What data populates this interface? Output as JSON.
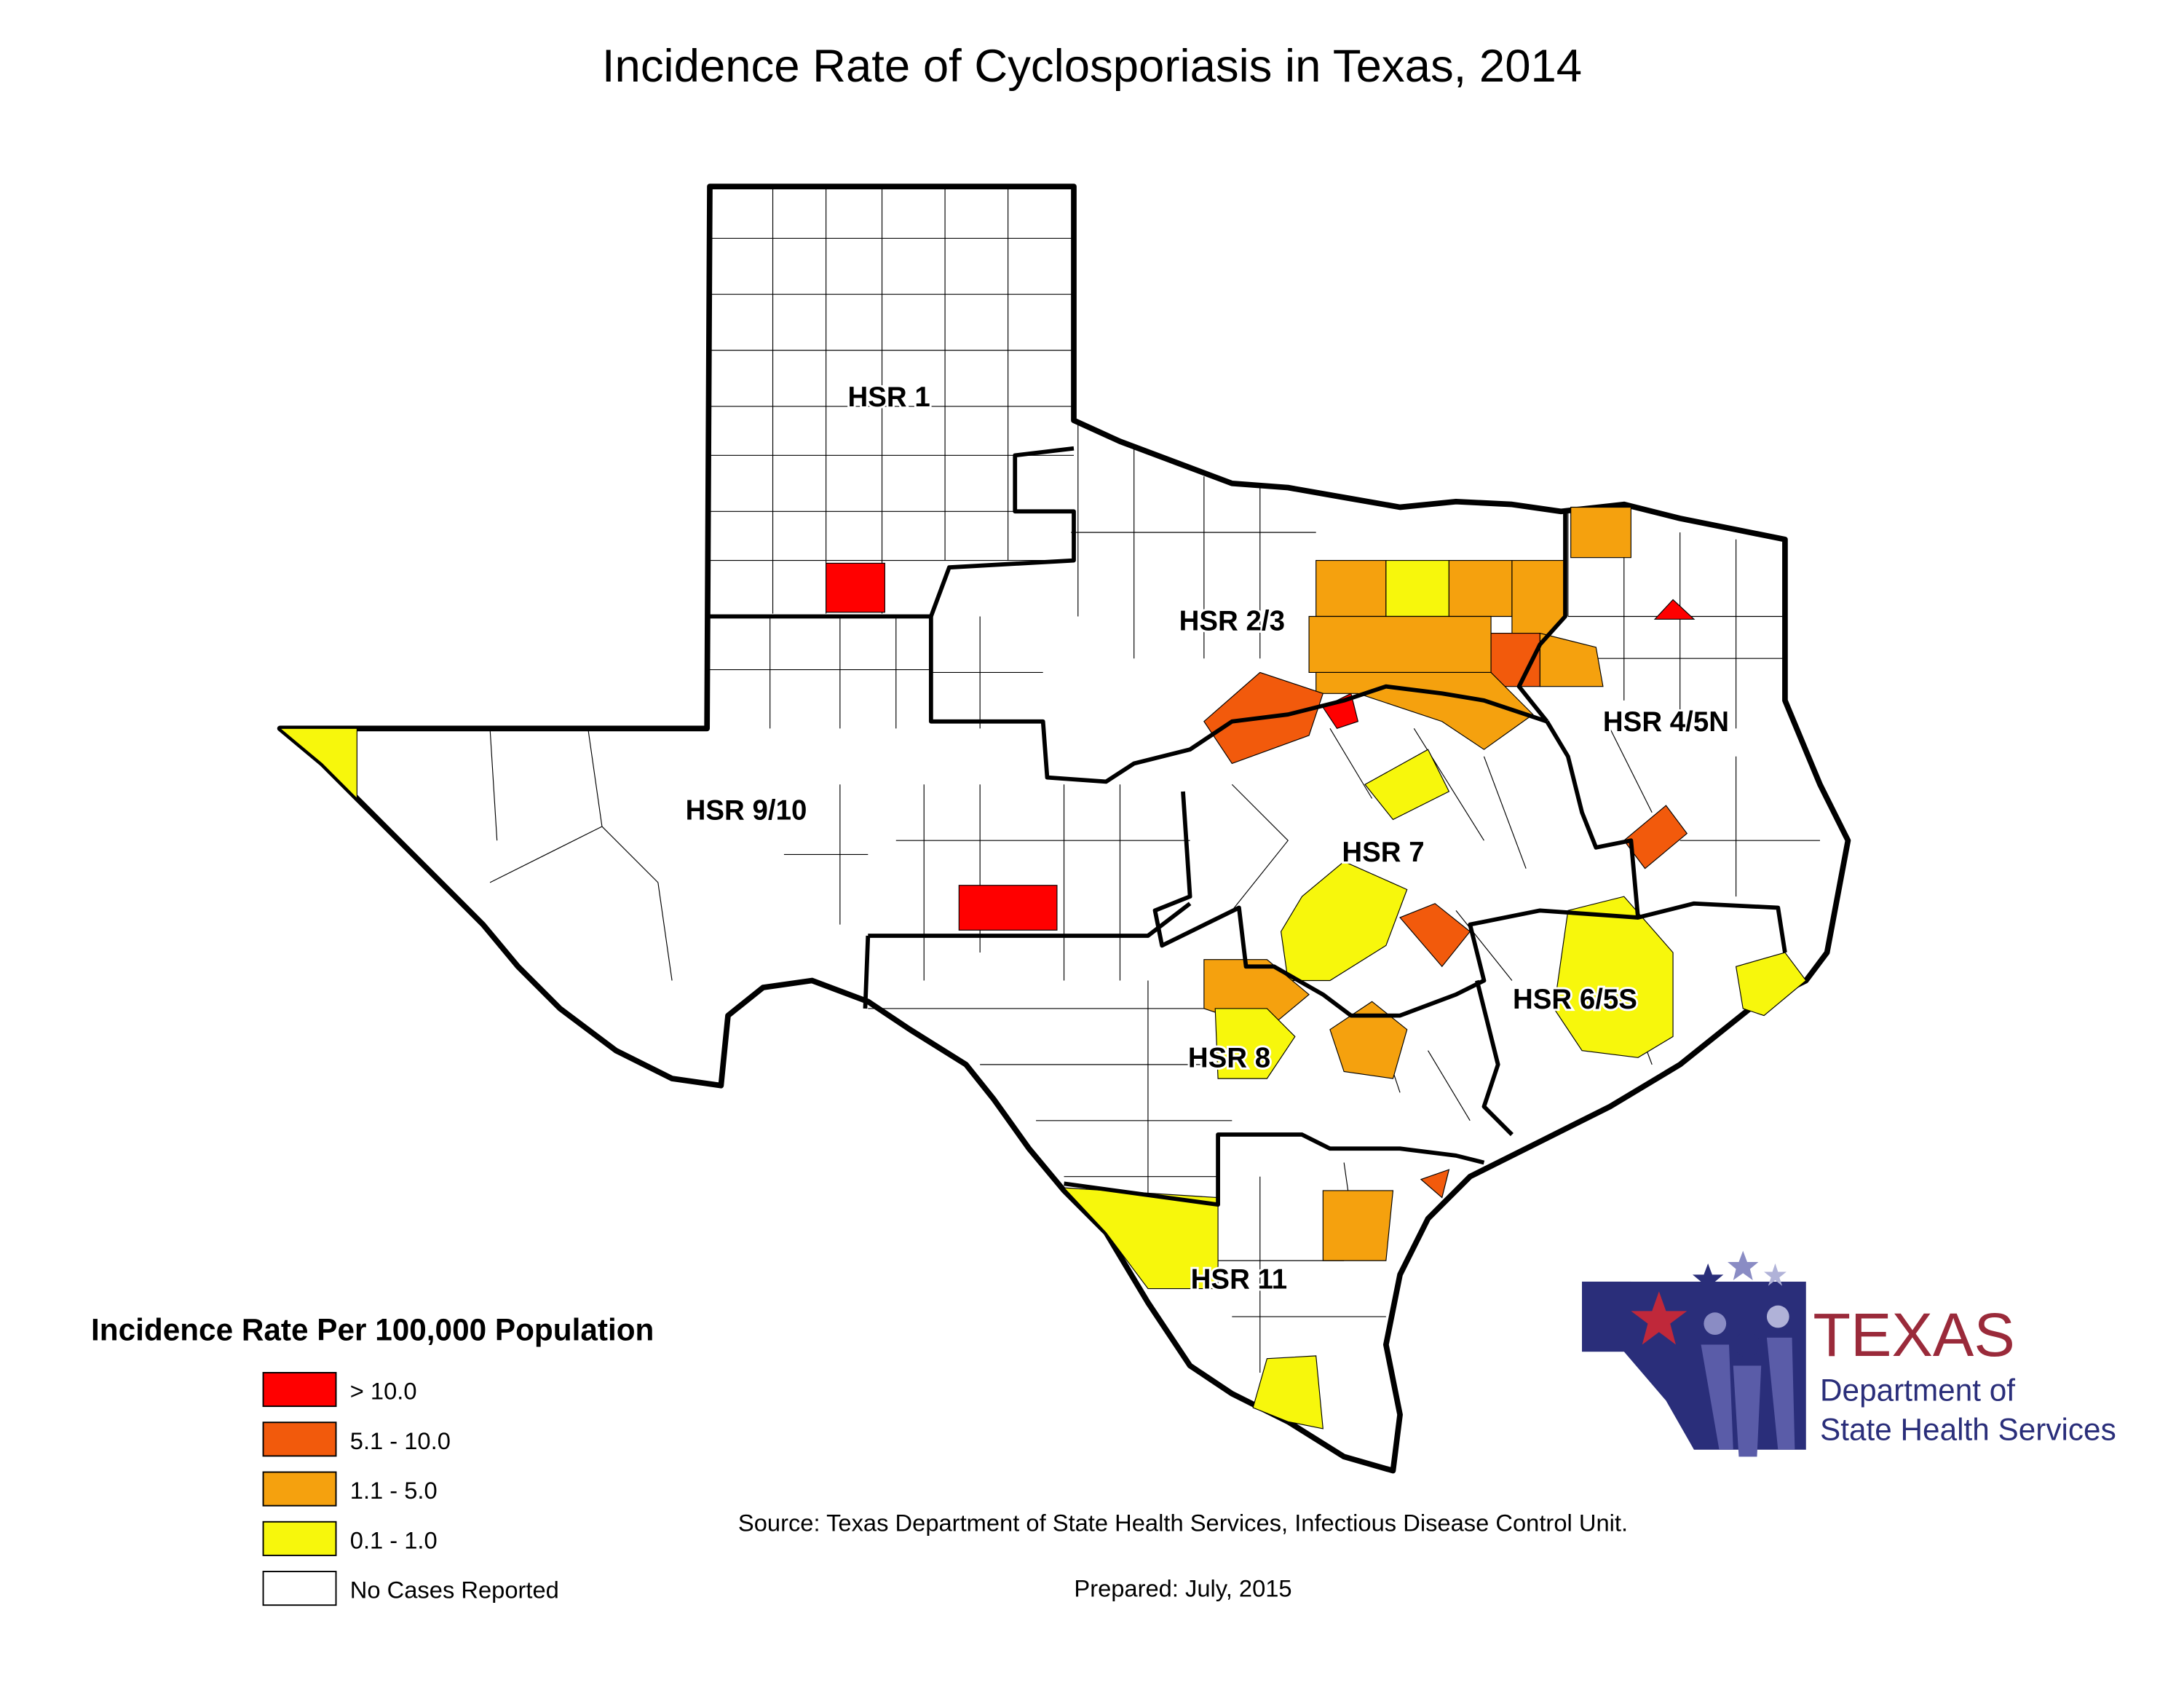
{
  "title": "Incidence Rate of Cyclosporiasis in Texas, 2014",
  "regions": [
    "HSR 1",
    "HSR 2/3",
    "HSR 4/5N",
    "HSR 9/10",
    "HSR 7",
    "HSR 6/5S",
    "HSR 8",
    "HSR 11"
  ],
  "legend": {
    "title": "Incidence Rate Per 100,000 Population",
    "items": [
      {
        "label": "> 10.0",
        "color": "#ff0000"
      },
      {
        "label": "5.1 - 10.0",
        "color": "#f25a0c"
      },
      {
        "label": "1.1 - 5.0",
        "color": "#f5a10e"
      },
      {
        "label": "0.1 - 1.0",
        "color": "#f7f70c"
      },
      {
        "label": "No Cases Reported",
        "color": "#ffffff"
      }
    ]
  },
  "source": "Source: Texas Department of State Health Services, Infectious Disease Control Unit.",
  "prepared": "Prepared: July, 2015",
  "logo": {
    "name": "TEXAS",
    "line1": "Department of",
    "line2": "State Health Services"
  }
}
